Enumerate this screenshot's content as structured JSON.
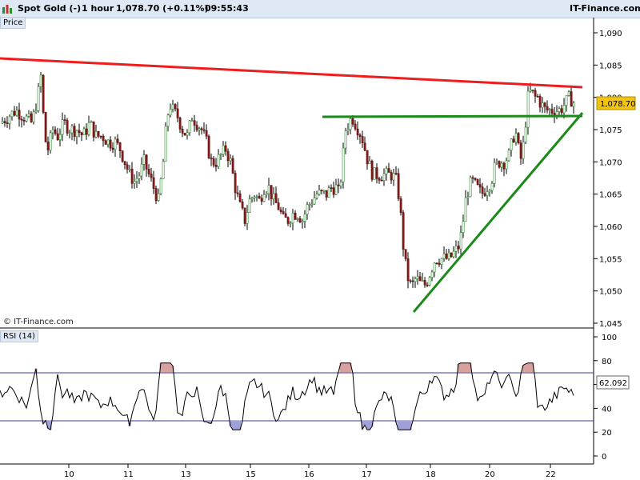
{
  "header": {
    "instrument": "Spot Gold (-)",
    "timeframe": "1 hour",
    "price_change": "1,078.70 (+0.11%)",
    "time": "09:55:43",
    "brand": "IT-Finance.com"
  },
  "price_panel": {
    "label": "Price",
    "last_value": "1,078.70"
  },
  "rsi_panel": {
    "label": "RSI (14)",
    "last_value": "62.092"
  },
  "copyright": "© IT-Finance.com",
  "colors": {
    "up": "#2e8b2e",
    "down": "#8b1a1a",
    "resistance": "#ee1c1c",
    "trendline": "#1a8a1a",
    "rsi_band": "#3a3aa0",
    "highlight": "#f2c40f"
  },
  "chart_data": [
    {
      "type": "candlestick",
      "title": "Spot Gold (-) 1 hour",
      "ylabel": "Price",
      "ylim": [
        1045,
        1092
      ],
      "yticks": [
        "1,045",
        "1,050",
        "1,055",
        "1,060",
        "1,065",
        "1,070",
        "1,075",
        "1,080",
        "1,085",
        "1,090"
      ],
      "x_tick_labels": [
        "10",
        "11",
        "13",
        "15",
        "16",
        "17",
        "18",
        "20",
        "22"
      ],
      "series_close_path": [
        [
          0,
          1076
        ],
        [
          10,
          1077
        ],
        [
          20,
          1078
        ],
        [
          30,
          1077
        ],
        [
          40,
          1076
        ],
        [
          47,
          1080
        ],
        [
          52,
          1084
        ],
        [
          55,
          1074
        ],
        [
          60,
          1072
        ],
        [
          66,
          1075
        ],
        [
          72,
          1074
        ],
        [
          80,
          1076
        ],
        [
          88,
          1075
        ],
        [
          96,
          1075
        ],
        [
          104,
          1074
        ],
        [
          112,
          1076
        ],
        [
          120,
          1074
        ],
        [
          128,
          1074
        ],
        [
          136,
          1073
        ],
        [
          144,
          1073
        ],
        [
          150,
          1072
        ],
        [
          156,
          1070
        ],
        [
          162,
          1068
        ],
        [
          168,
          1067
        ],
        [
          174,
          1068
        ],
        [
          180,
          1070
        ],
        [
          186,
          1068
        ],
        [
          192,
          1066
        ],
        [
          198,
          1064
        ],
        [
          204,
          1070
        ],
        [
          208,
          1076
        ],
        [
          212,
          1079
        ],
        [
          216,
          1078
        ],
        [
          222,
          1077
        ],
        [
          228,
          1075
        ],
        [
          234,
          1074
        ],
        [
          240,
          1077
        ],
        [
          246,
          1076
        ],
        [
          252,
          1075
        ],
        [
          258,
          1073
        ],
        [
          264,
          1070
        ],
        [
          270,
          1070
        ],
        [
          276,
          1071
        ],
        [
          282,
          1072
        ],
        [
          288,
          1070
        ],
        [
          294,
          1066
        ],
        [
          300,
          1063
        ],
        [
          306,
          1061
        ],
        [
          312,
          1064
        ],
        [
          318,
          1065
        ],
        [
          324,
          1064
        ],
        [
          330,
          1066
        ],
        [
          336,
          1066
        ],
        [
          342,
          1064
        ],
        [
          348,
          1063
        ],
        [
          354,
          1061
        ],
        [
          360,
          1061
        ],
        [
          366,
          1062
        ],
        [
          372,
          1062
        ],
        [
          378,
          1061
        ],
        [
          384,
          1063
        ],
        [
          390,
          1064
        ],
        [
          396,
          1065
        ],
        [
          402,
          1065
        ],
        [
          408,
          1065
        ],
        [
          414,
          1066
        ],
        [
          420,
          1066
        ],
        [
          424,
          1065
        ],
        [
          428,
          1070
        ],
        [
          432,
          1075
        ],
        [
          436,
          1076
        ],
        [
          440,
          1077
        ],
        [
          444,
          1076
        ],
        [
          448,
          1075
        ],
        [
          452,
          1074
        ],
        [
          456,
          1072
        ],
        [
          460,
          1070
        ],
        [
          466,
          1068
        ],
        [
          472,
          1068
        ],
        [
          478,
          1068
        ],
        [
          484,
          1068
        ],
        [
          490,
          1068
        ],
        [
          496,
          1067
        ],
        [
          500,
          1063
        ],
        [
          504,
          1057
        ],
        [
          508,
          1053
        ],
        [
          512,
          1051
        ],
        [
          516,
          1051
        ],
        [
          520,
          1052
        ],
        [
          526,
          1051
        ],
        [
          532,
          1051
        ],
        [
          538,
          1053
        ],
        [
          544,
          1055
        ],
        [
          550,
          1055
        ],
        [
          556,
          1055
        ],
        [
          562,
          1055
        ],
        [
          568,
          1056
        ],
        [
          574,
          1057
        ],
        [
          578,
          1060
        ],
        [
          582,
          1064
        ],
        [
          586,
          1066
        ],
        [
          590,
          1067
        ],
        [
          596,
          1066
        ],
        [
          602,
          1065
        ],
        [
          608,
          1066
        ],
        [
          614,
          1067
        ],
        [
          618,
          1069
        ],
        [
          624,
          1070
        ],
        [
          630,
          1070
        ],
        [
          636,
          1071
        ],
        [
          640,
          1073
        ],
        [
          644,
          1075
        ],
        [
          648,
          1072
        ],
        [
          652,
          1070
        ],
        [
          656,
          1075
        ],
        [
          660,
          1080
        ],
        [
          664,
          1081
        ],
        [
          668,
          1080
        ],
        [
          672,
          1080
        ],
        [
          676,
          1079
        ],
        [
          682,
          1078
        ],
        [
          688,
          1078
        ],
        [
          694,
          1078
        ],
        [
          700,
          1078
        ],
        [
          706,
          1079
        ],
        [
          712,
          1080
        ],
        [
          718,
          1079
        ]
      ]
    },
    {
      "type": "line",
      "title": "RSI (14)",
      "ylim": [
        0,
        100
      ],
      "yticks": [
        "0",
        "20",
        "40",
        "60",
        "80",
        "100"
      ],
      "reference_lines": [
        70,
        30
      ],
      "last_value": 62.092
    }
  ]
}
